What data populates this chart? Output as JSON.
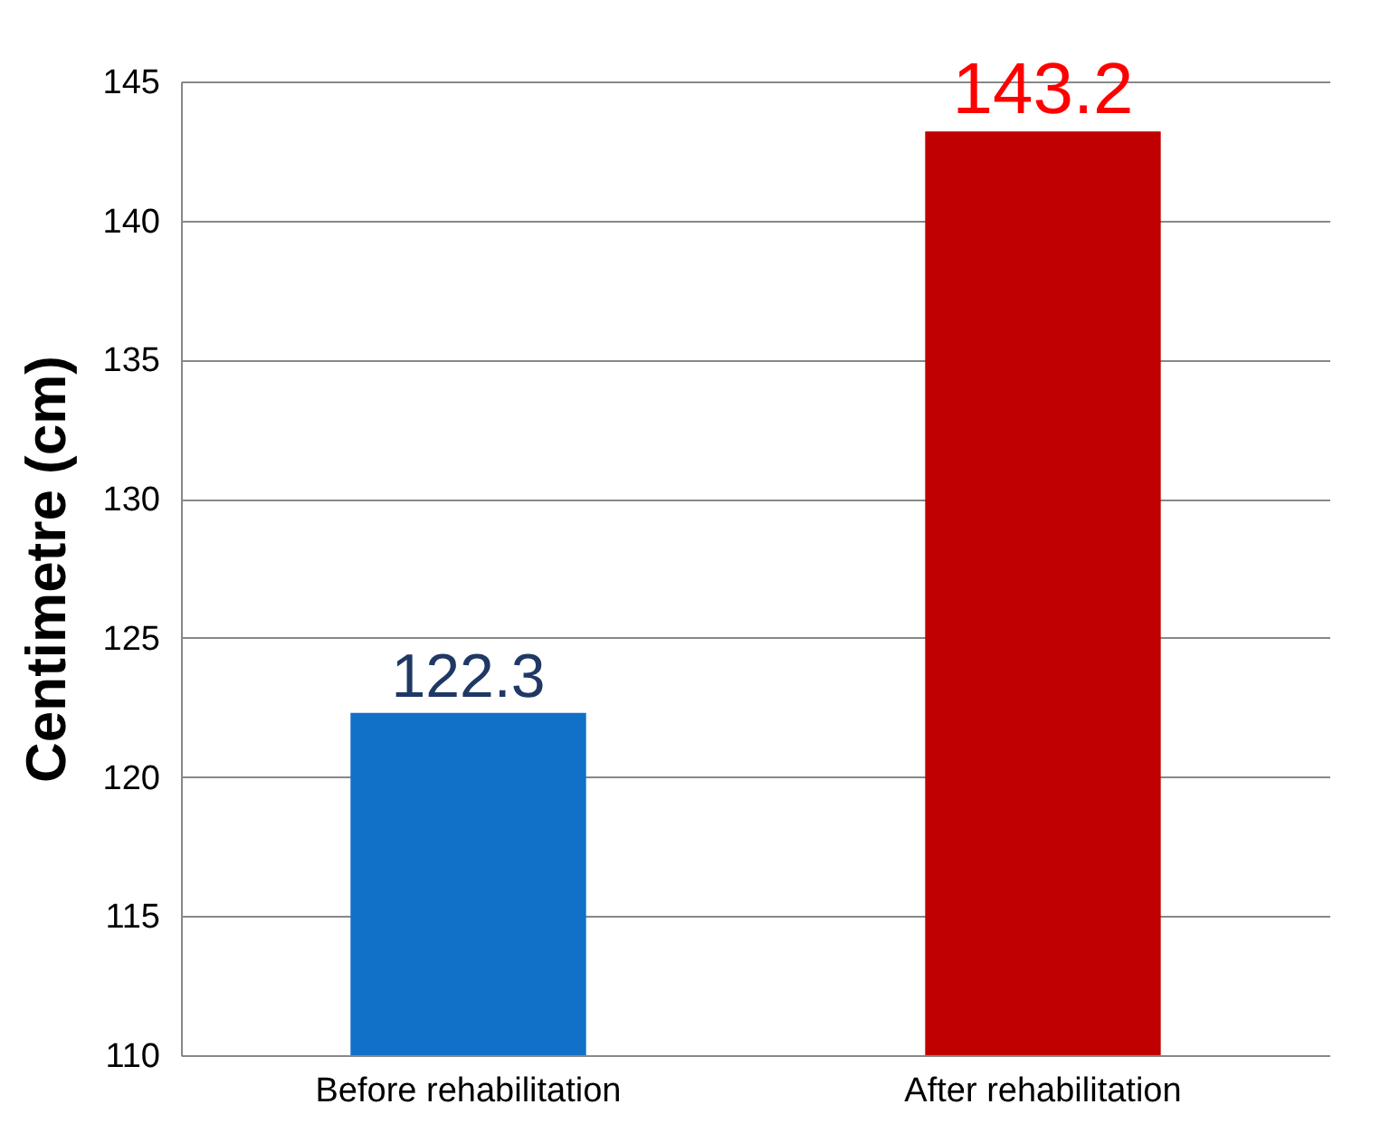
{
  "chart_data": {
    "type": "bar",
    "ylabel": "Centimetre (cm)",
    "categories": [
      "Before rehabilitation",
      "After rehabilitation"
    ],
    "values": [
      122.3,
      143.2
    ],
    "colors": [
      "#1170c8",
      "#c00000"
    ],
    "ylim": [
      110,
      145
    ],
    "yticks": [
      110,
      115,
      120,
      125,
      130,
      135,
      140,
      145
    ],
    "grid": "y",
    "data_labels": true
  }
}
